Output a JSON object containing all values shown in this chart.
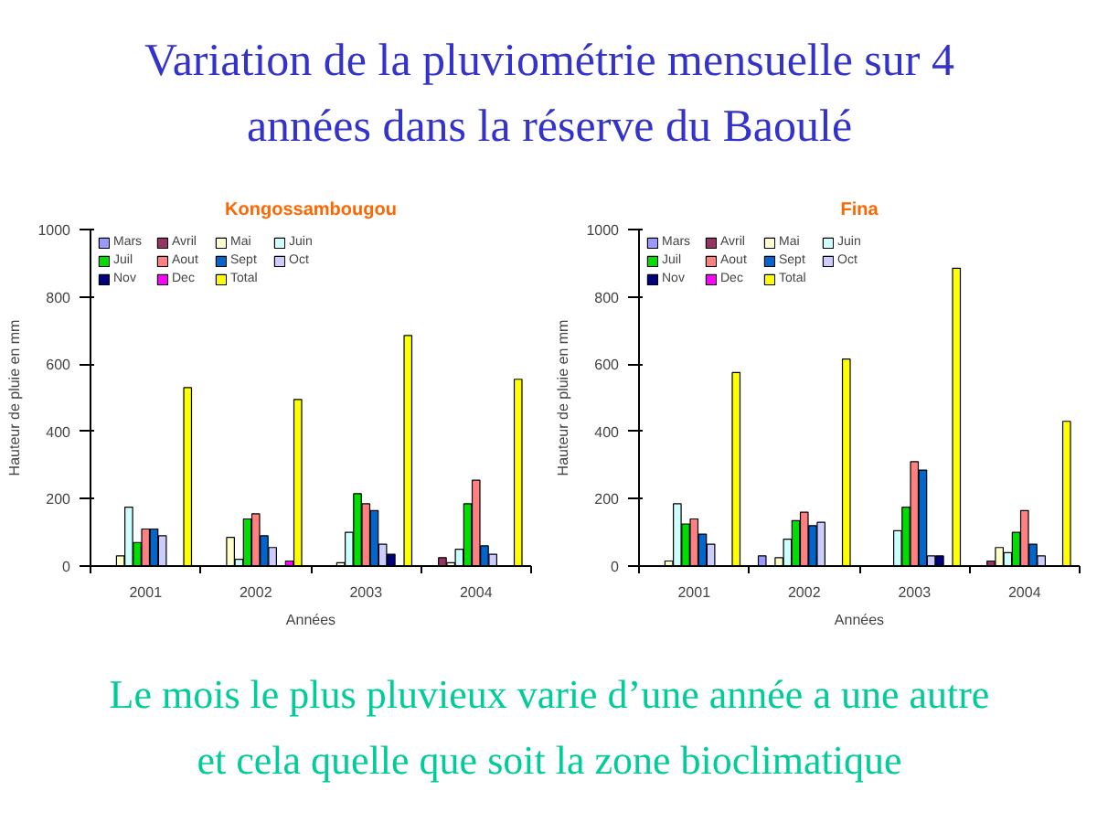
{
  "chart_data": [
    {
      "type": "other",
      "title": "Variation de la pluviométrie mensuelle sur 4 années dans la réserve du Baoulé"
    },
    {
      "type": "bar",
      "title": "Kongossambougou",
      "xlabel": "Années",
      "ylabel": "Hauteur de pluie en mm",
      "categories": [
        "2001",
        "2002",
        "2003",
        "2004"
      ],
      "ylim": [
        0,
        1000
      ],
      "yticks": [
        0,
        200,
        400,
        600,
        800,
        1000
      ],
      "legend": "top left",
      "series": [
        {
          "name": "Mars",
          "color": "#9999ff",
          "values": [
            null,
            null,
            null,
            null
          ]
        },
        {
          "name": "Avril",
          "color": "#993366",
          "values": [
            null,
            null,
            null,
            25
          ]
        },
        {
          "name": "Mai",
          "color": "#ffffcc",
          "values": [
            30,
            85,
            10,
            10
          ]
        },
        {
          "name": "Juin",
          "color": "#ccffff",
          "values": [
            175,
            20,
            100,
            50
          ]
        },
        {
          "name": "Juil",
          "color": "#00dd00",
          "values": [
            70,
            140,
            215,
            185
          ]
        },
        {
          "name": "Aout",
          "color": "#ff8080",
          "values": [
            110,
            155,
            185,
            255
          ]
        },
        {
          "name": "Sept",
          "color": "#0066cc",
          "values": [
            110,
            90,
            165,
            60
          ]
        },
        {
          "name": "Oct",
          "color": "#ccccff",
          "values": [
            90,
            55,
            65,
            35
          ]
        },
        {
          "name": "Nov",
          "color": "#000080",
          "values": [
            null,
            null,
            35,
            null
          ]
        },
        {
          "name": "Dec",
          "color": "#ff00ff",
          "values": [
            null,
            15,
            null,
            null
          ]
        },
        {
          "name": "Total",
          "color": "#ffff00",
          "values": [
            530,
            495,
            685,
            555
          ]
        }
      ]
    },
    {
      "type": "bar",
      "title": "Fina",
      "xlabel": "Années",
      "ylabel": "Hauteur de pluie en mm",
      "categories": [
        "2001",
        "2002",
        "2003",
        "2004"
      ],
      "ylim": [
        0,
        1000
      ],
      "yticks": [
        0,
        200,
        400,
        600,
        800,
        1000
      ],
      "legend": "top left",
      "series": [
        {
          "name": "Mars",
          "color": "#9999ff",
          "values": [
            null,
            30,
            null,
            null
          ]
        },
        {
          "name": "Avril",
          "color": "#993366",
          "values": [
            null,
            null,
            null,
            15
          ]
        },
        {
          "name": "Mai",
          "color": "#ffffcc",
          "values": [
            15,
            25,
            null,
            55
          ]
        },
        {
          "name": "Juin",
          "color": "#ccffff",
          "values": [
            185,
            80,
            105,
            40
          ]
        },
        {
          "name": "Juil",
          "color": "#00dd00",
          "values": [
            125,
            135,
            175,
            100
          ]
        },
        {
          "name": "Aout",
          "color": "#ff8080",
          "values": [
            140,
            160,
            310,
            165
          ]
        },
        {
          "name": "Sept",
          "color": "#0066cc",
          "values": [
            95,
            120,
            285,
            65
          ]
        },
        {
          "name": "Oct",
          "color": "#ccccff",
          "values": [
            65,
            130,
            30,
            30
          ]
        },
        {
          "name": "Nov",
          "color": "#000080",
          "values": [
            null,
            null,
            30,
            null
          ]
        },
        {
          "name": "Dec",
          "color": "#ff00ff",
          "values": [
            null,
            null,
            null,
            null
          ]
        },
        {
          "name": "Total",
          "color": "#ffff00",
          "values": [
            575,
            615,
            885,
            430
          ]
        }
      ]
    },
    {
      "type": "other",
      "annotations": [
        "Le mois le plus pluvieux varie d’une année a une autre et cela quelle que soit la zone bioclimatique"
      ]
    }
  ]
}
